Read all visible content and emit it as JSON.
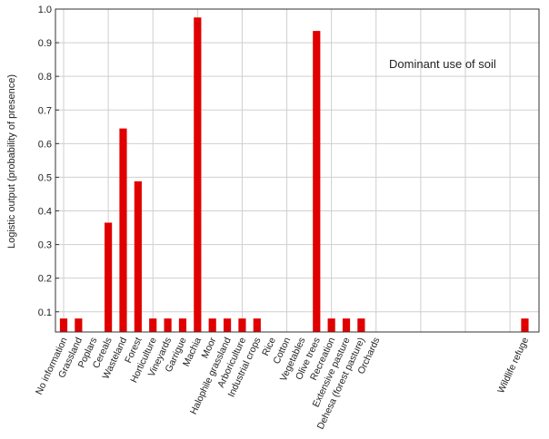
{
  "chart_data": {
    "type": "bar",
    "annotation": "Dominant use of soil",
    "ylabel": "Logistic output (probability of presence)",
    "xlabel": "",
    "ylim": [
      0.04,
      1.0
    ],
    "yticks": [
      0.1,
      0.2,
      0.3,
      0.4,
      0.5,
      0.6,
      0.7,
      0.8,
      0.9,
      1.0
    ],
    "ytick_labels": [
      "0.1",
      "0.2",
      "0.3",
      "0.4",
      "0.5",
      "0.6",
      "0.7",
      "0.8",
      "0.9",
      "1.0"
    ],
    "grid": true,
    "bar_color": "#e00000",
    "categories": [
      "No information",
      "Grassland",
      "Poplars",
      "Cereals",
      "Wasteland",
      "Forest",
      "Horticulture",
      "Vineyards",
      "Garrigue",
      "Machia",
      "Moor",
      "Halophile grassland",
      "Arboriculture",
      "Industrial crops",
      "Rice",
      "Cotton",
      "Vegetables",
      "Olive trees",
      "Recreation",
      "Extensive pasture",
      "Dehesa (forest pasture)",
      "Orchards",
      "",
      "",
      "",
      "",
      "",
      "",
      "",
      "",
      "",
      "Wildlife refuge"
    ],
    "values": [
      0.08,
      0.08,
      null,
      0.365,
      0.645,
      0.488,
      0.08,
      0.08,
      0.08,
      0.975,
      0.08,
      0.08,
      0.08,
      0.08,
      null,
      null,
      null,
      0.935,
      0.08,
      0.08,
      0.08,
      null,
      null,
      null,
      null,
      null,
      null,
      null,
      null,
      null,
      null,
      0.08
    ]
  }
}
